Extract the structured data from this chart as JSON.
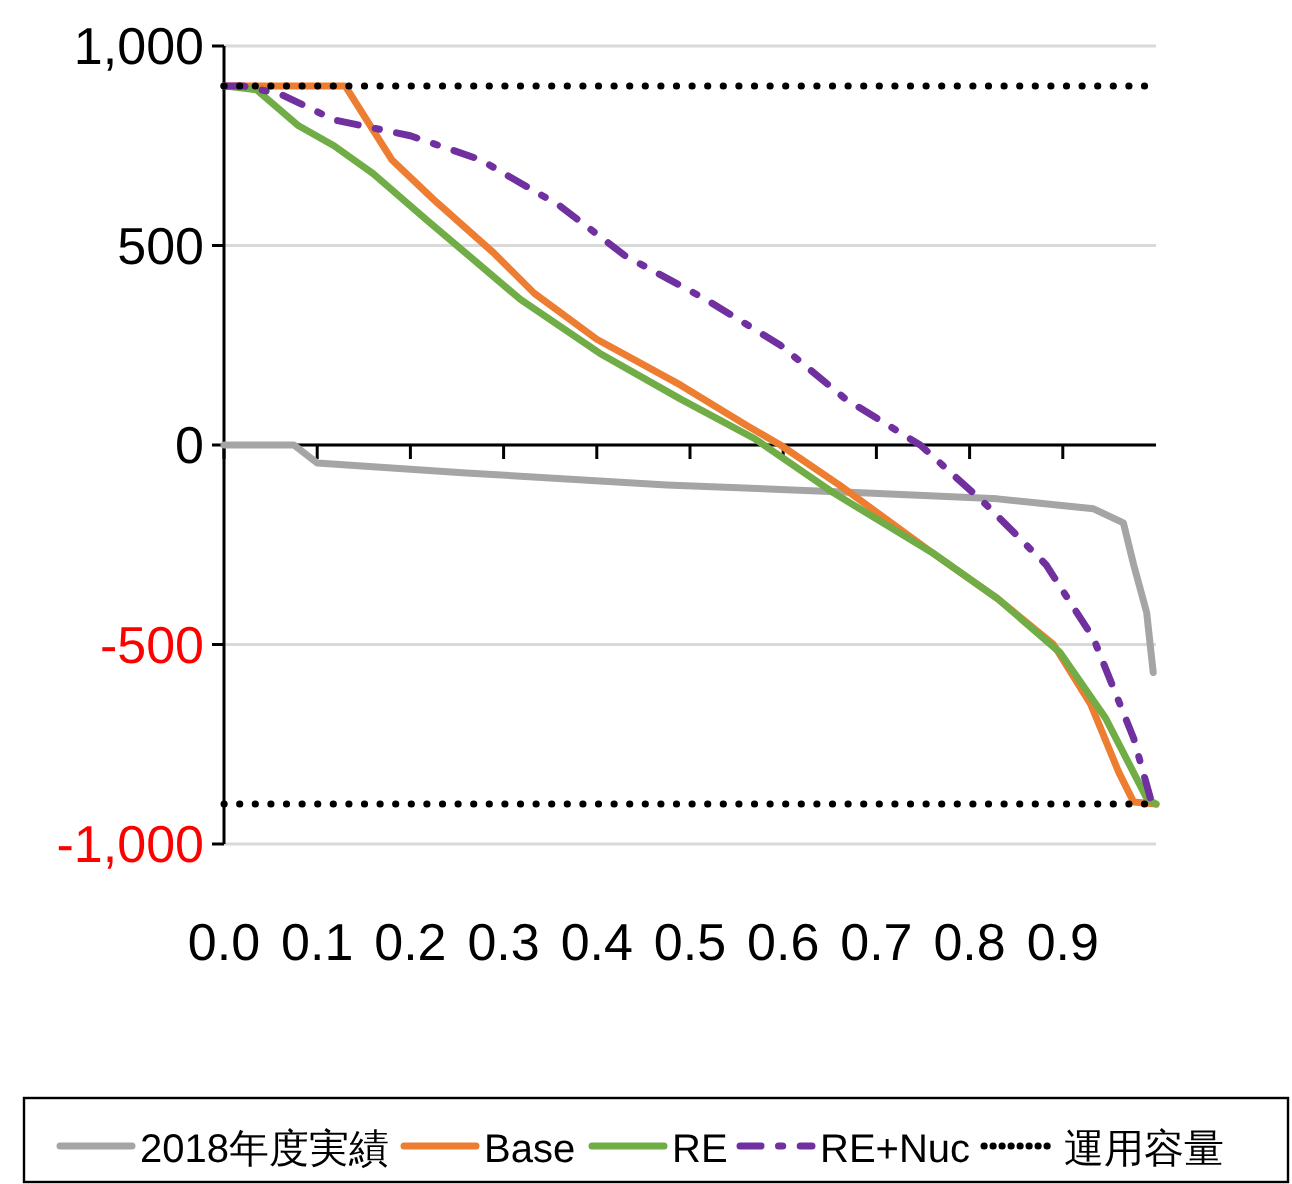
{
  "chart_data": {
    "type": "line",
    "xlim": [
      0,
      1
    ],
    "xticks": [
      {
        "value": 0,
        "label": "0.0"
      },
      {
        "value": 0.1,
        "label": "0.1"
      },
      {
        "value": 0.2,
        "label": "0.2"
      },
      {
        "value": 0.3,
        "label": "0.3"
      },
      {
        "value": 0.4,
        "label": "0.4"
      },
      {
        "value": 0.5,
        "label": "0.5"
      },
      {
        "value": 0.6,
        "label": "0.6"
      },
      {
        "value": 0.7,
        "label": "0.7"
      },
      {
        "value": 0.8,
        "label": "0.8"
      },
      {
        "value": 0.9,
        "label": "0.9"
      }
    ],
    "ylim": [
      -1000,
      1000
    ],
    "yticks": [
      {
        "value": 1000,
        "label": "1,000"
      },
      500,
      0,
      -500,
      {
        "value": -1000,
        "label": "-1,000"
      }
    ],
    "grid": "y",
    "legend": "bottom",
    "marker": "none",
    "series": [
      {
        "name": "2018年度実績",
        "color": "#a5a5a5",
        "line_style": "solid",
        "x": [
          0,
          0.075,
          0.1,
          0.26,
          0.475,
          0.69,
          0.83,
          0.933,
          0.965,
          0.976,
          0.99,
          0.997
        ],
        "values": [
          0,
          0,
          -45,
          -70,
          -100,
          -120,
          -135,
          -160,
          -195,
          -300,
          -420,
          -570
        ]
      },
      {
        "name": "Base",
        "color": "#ed7d31",
        "line_style": "solid",
        "x": [
          0,
          0.13,
          0.18,
          0.225,
          0.29,
          0.333,
          0.4,
          0.49,
          0.56,
          0.597,
          0.66,
          0.76,
          0.83,
          0.89,
          0.93,
          0.96,
          0.976,
          1
        ],
        "values": [
          900,
          900,
          715,
          615,
          480,
          380,
          265,
          150,
          50,
          0,
          -100,
          -270,
          -385,
          -500,
          -650,
          -820,
          -895,
          -900
        ]
      },
      {
        "name": "RE",
        "color": "#70ad47",
        "line_style": "solid",
        "x": [
          0,
          0.035,
          0.08,
          0.118,
          0.16,
          0.217,
          0.318,
          0.403,
          0.49,
          0.57,
          0.654,
          0.76,
          0.83,
          0.897,
          0.946,
          0.99,
          1
        ],
        "values": [
          900,
          890,
          800,
          750,
          680,
          565,
          365,
          230,
          115,
          15,
          -120,
          -270,
          -385,
          -520,
          -685,
          -885,
          -900
        ]
      },
      {
        "name": "RE+Nuc",
        "color": "#7030a0",
        "line_style": "dashed",
        "x": [
          0,
          0.02,
          0.06,
          0.118,
          0.2,
          0.275,
          0.36,
          0.43,
          0.517,
          0.597,
          0.667,
          0.747,
          0.818,
          0.882,
          0.933,
          0.976,
          0.994,
          1
        ],
        "values": [
          900,
          900,
          880,
          815,
          775,
          715,
          600,
          475,
          365,
          250,
          115,
          0,
          -150,
          -300,
          -485,
          -735,
          -885,
          -900
        ]
      }
    ],
    "ref_lines": [
      {
        "axis": "y",
        "value": 900,
        "label": "運用容量",
        "color": "#000000",
        "line_style": "dotted"
      },
      {
        "axis": "y",
        "value": -900,
        "color": "#000000",
        "line_style": "dotted"
      }
    ]
  }
}
